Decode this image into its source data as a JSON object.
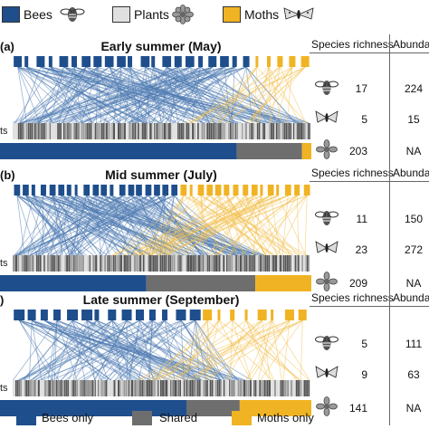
{
  "legend_top": {
    "bees": "Bees",
    "plants": "Plants",
    "moths": "Moths"
  },
  "colors": {
    "bee": "#1f4e8c",
    "plant": "#bdbdbd",
    "moth": "#f0b323",
    "shared": "#6e6e6e",
    "bee_line": "#4a78b0",
    "moth_line": "#f2c04d"
  },
  "table_headers": {
    "richness": "Species richness",
    "abundance": "Abunda"
  },
  "cut_label": "ts",
  "panels": [
    {
      "letter": "(a)",
      "title": "Early summer (May)",
      "rows": [
        {
          "icon": "bee-icon",
          "richness": "17",
          "abundance": "224"
        },
        {
          "icon": "moth-icon",
          "richness": "5",
          "abundance": "15"
        },
        {
          "icon": "flower-icon",
          "richness": "203",
          "abundance": "NA"
        }
      ],
      "plant_share": {
        "bees_only": 0.76,
        "shared": 0.21,
        "moths_only": 0.03
      }
    },
    {
      "letter": "(b)",
      "title": "Mid summer (July)",
      "rows": [
        {
          "icon": "bee-icon",
          "richness": "11",
          "abundance": "150"
        },
        {
          "icon": "moth-icon",
          "richness": "23",
          "abundance": "272"
        },
        {
          "icon": "flower-icon",
          "richness": "209",
          "abundance": "NA"
        }
      ],
      "plant_share": {
        "bees_only": 0.47,
        "shared": 0.35,
        "moths_only": 0.18
      }
    },
    {
      "letter": ")",
      "title": "Late summer (September)",
      "rows": [
        {
          "icon": "bee-icon",
          "richness": "5",
          "abundance": "111"
        },
        {
          "icon": "moth-icon",
          "richness": "9",
          "abundance": "63"
        },
        {
          "icon": "flower-icon",
          "richness": "141",
          "abundance": "NA"
        }
      ],
      "plant_share": {
        "bees_only": 0.6,
        "shared": 0.17,
        "moths_only": 0.23
      }
    }
  ],
  "legend_bottom": {
    "bees_only": "Bees only",
    "shared": "Shared",
    "moths_only": "Moths only"
  }
}
